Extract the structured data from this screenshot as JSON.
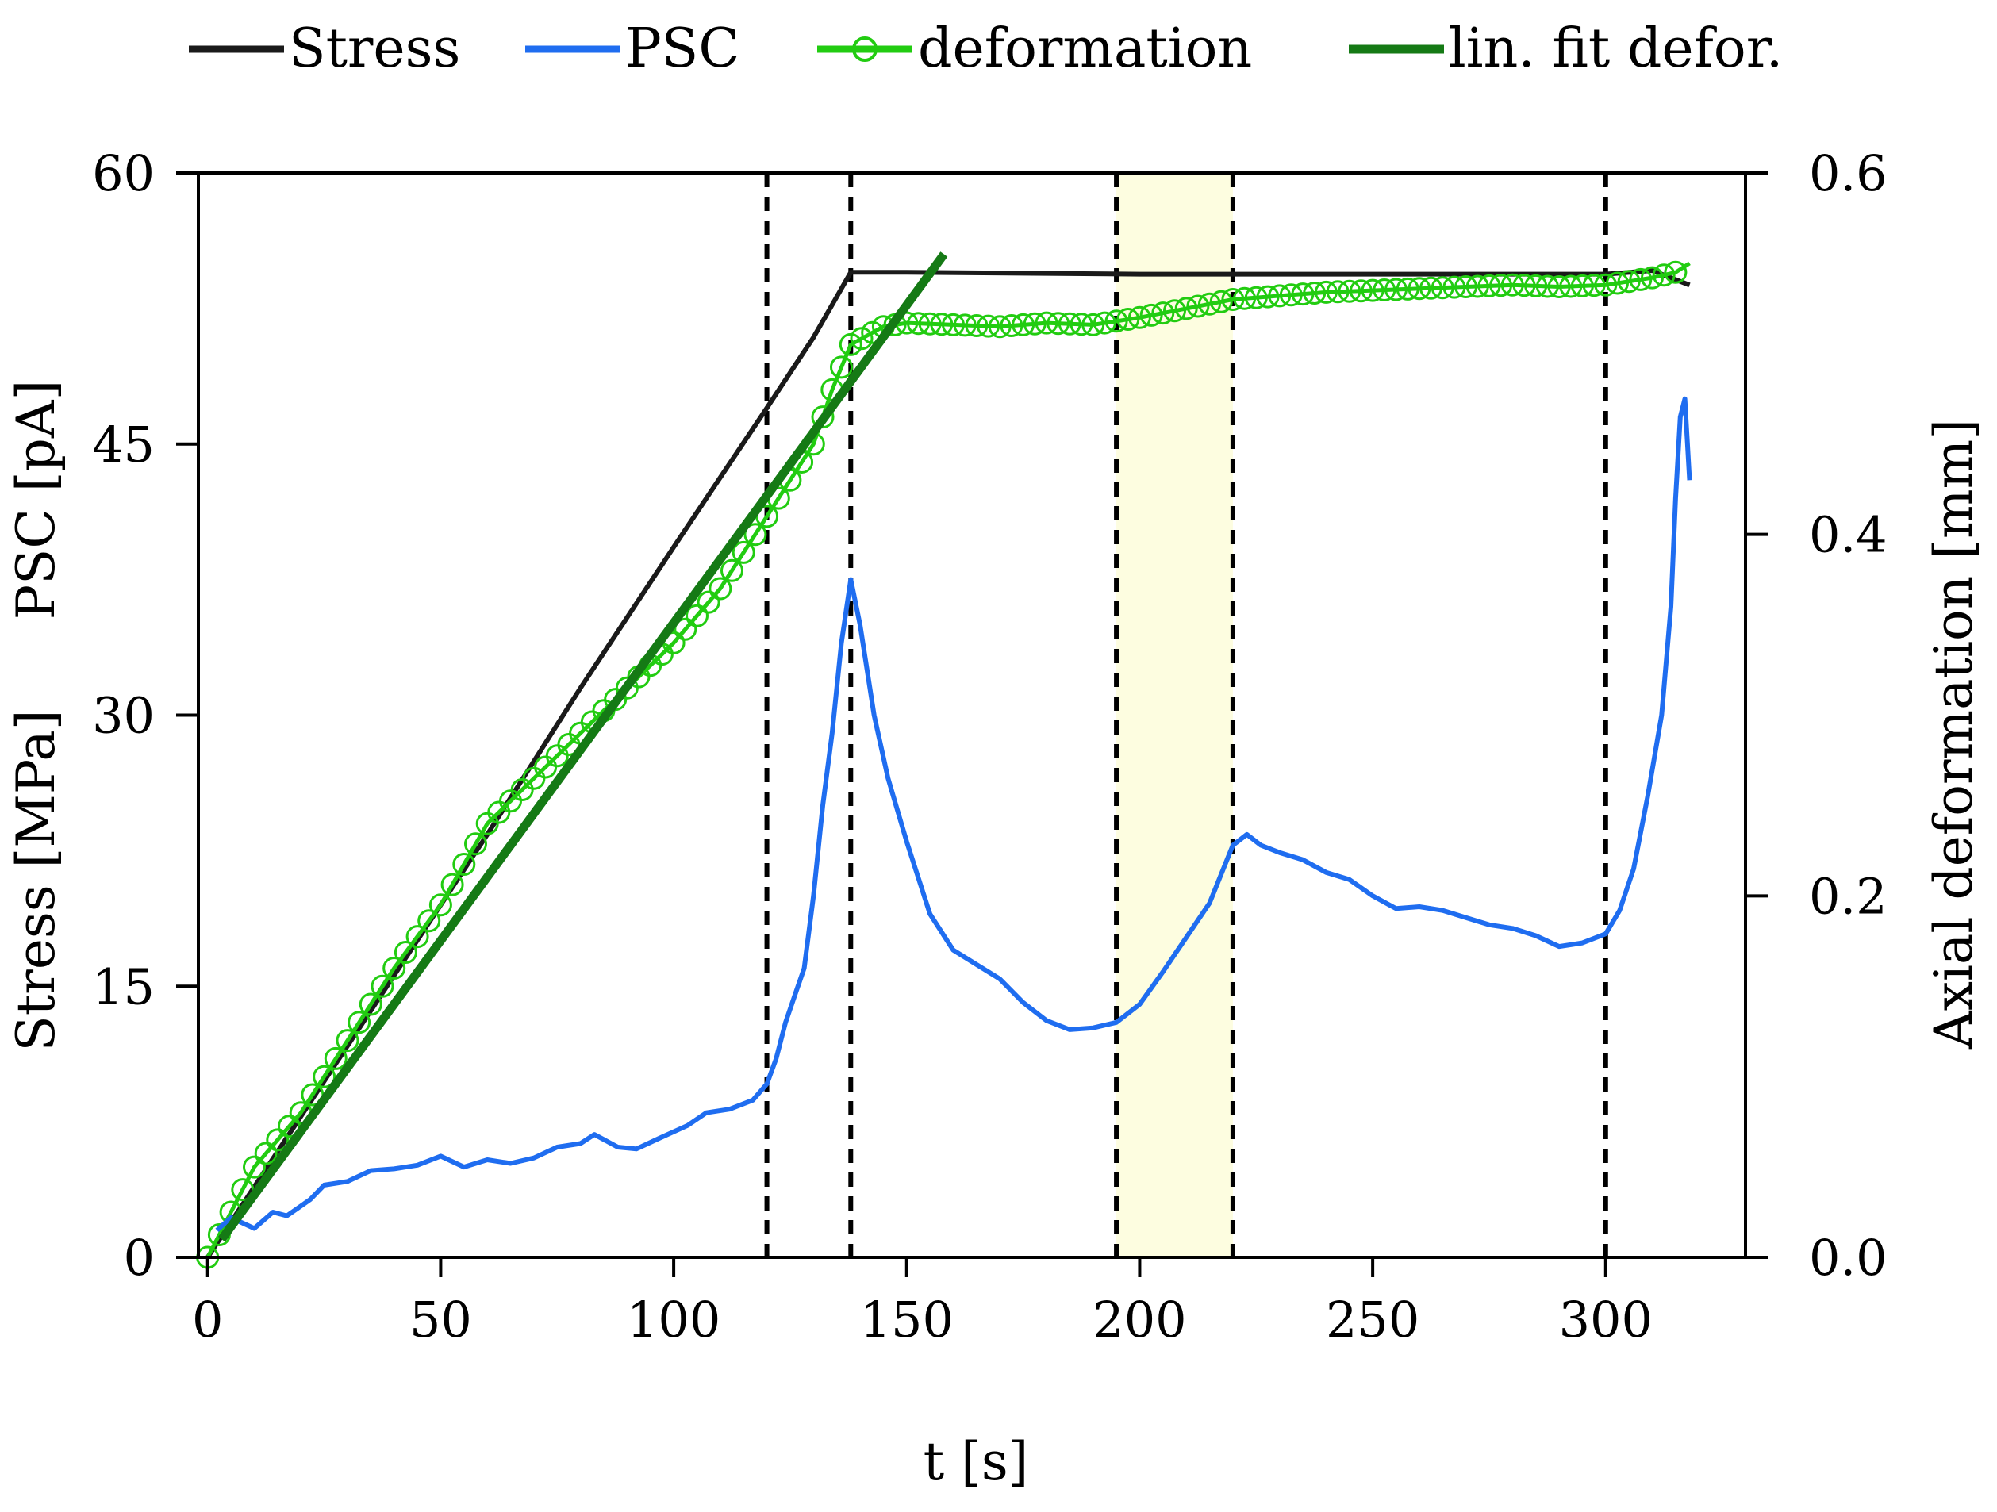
{
  "chart_data": {
    "type": "line",
    "x_label": "t [s]",
    "y_left_label_parts": [
      "Stress [MPa]",
      "PSC [pA]"
    ],
    "y_right_label": "Axial deformation [mm]",
    "x_range": [
      -2,
      330
    ],
    "y_left_range": [
      0,
      60
    ],
    "y_right_range": [
      0,
      0.6
    ],
    "x_ticks": [
      "0",
      "50",
      "100",
      "150",
      "200",
      "250",
      "300"
    ],
    "y_left_ticks": [
      "0",
      "15",
      "30",
      "45",
      "60"
    ],
    "y_right_ticks": [
      "0.0",
      "0.2",
      "0.4",
      "0.6"
    ],
    "legend": [
      {
        "label": "Stress",
        "color": "#1a1a1a",
        "marker": "none"
      },
      {
        "label": "PSC",
        "color": "#1f6df0",
        "marker": "none"
      },
      {
        "label": "deformation",
        "color": "#22cc11",
        "marker": "circle"
      },
      {
        "label": "lin. fit defor.",
        "color": "#157a15",
        "marker": "none"
      }
    ],
    "vertical_lines_x": [
      120,
      138,
      195,
      220,
      300
    ],
    "highlight_band_x": [
      195,
      220
    ],
    "highlight_color": "#fdfde0",
    "series": [
      {
        "name": "Stress",
        "axis": "left",
        "color": "#1a1a1a",
        "x": [
          0,
          20,
          40,
          60,
          80,
          100,
          120,
          130,
          138,
          150,
          200,
          250,
          300,
          310,
          318
        ],
        "y": [
          0,
          7.8,
          15.6,
          23.4,
          31.5,
          39.3,
          47.0,
          50.9,
          54.5,
          54.5,
          54.4,
          54.4,
          54.4,
          54.6,
          53.8
        ]
      },
      {
        "name": "PSC",
        "axis": "left",
        "color": "#1f6df0",
        "x": [
          2,
          5,
          10,
          14,
          17,
          22,
          25,
          30,
          35,
          40,
          45,
          50,
          55,
          60,
          65,
          70,
          75,
          80,
          83,
          88,
          92,
          97,
          103,
          107,
          112,
          117,
          120,
          122,
          124,
          126,
          128,
          130,
          132,
          134,
          136,
          138,
          140,
          143,
          146,
          150,
          155,
          160,
          165,
          170,
          175,
          180,
          185,
          190,
          195,
          200,
          205,
          210,
          215,
          220,
          223,
          226,
          230,
          235,
          240,
          245,
          250,
          255,
          260,
          265,
          270,
          275,
          280,
          285,
          290,
          295,
          300,
          303,
          306,
          309,
          312,
          314,
          315,
          316,
          317,
          318
        ],
        "y": [
          1.5,
          2.2,
          1.6,
          2.5,
          2.3,
          3.2,
          4.0,
          4.2,
          4.8,
          4.9,
          5.1,
          5.6,
          5.0,
          5.4,
          5.2,
          5.5,
          6.1,
          6.3,
          6.8,
          6.1,
          6.0,
          6.6,
          7.3,
          8.0,
          8.2,
          8.7,
          9.6,
          11.0,
          13.0,
          14.5,
          16.0,
          20.0,
          25.0,
          29.0,
          34.0,
          37.5,
          35.0,
          30.0,
          26.5,
          23.0,
          19.0,
          17.0,
          16.2,
          15.4,
          14.1,
          13.1,
          12.6,
          12.7,
          13.0,
          14.0,
          15.8,
          17.7,
          19.6,
          22.8,
          23.4,
          22.8,
          22.4,
          22.0,
          21.3,
          20.9,
          20.0,
          19.3,
          19.4,
          19.2,
          18.8,
          18.4,
          18.2,
          17.8,
          17.2,
          17.4,
          17.9,
          19.2,
          21.5,
          25.5,
          30.0,
          36.0,
          42.0,
          46.5,
          47.5,
          43.0
        ]
      },
      {
        "name": "deformation",
        "axis": "right",
        "color": "#22cc11",
        "marker": "circle",
        "x": [
          0,
          10,
          20,
          30,
          40,
          50,
          60,
          70,
          80,
          90,
          100,
          110,
          120,
          125,
          130,
          134,
          138,
          145,
          150,
          160,
          170,
          180,
          190,
          200,
          210,
          220,
          230,
          240,
          250,
          260,
          270,
          280,
          290,
          300,
          305,
          310,
          315,
          318
        ],
        "y": [
          0.0,
          0.05,
          0.08,
          0.12,
          0.16,
          0.195,
          0.24,
          0.265,
          0.29,
          0.315,
          0.34,
          0.37,
          0.41,
          0.43,
          0.45,
          0.48,
          0.505,
          0.515,
          0.517,
          0.516,
          0.515,
          0.517,
          0.516,
          0.52,
          0.525,
          0.53,
          0.532,
          0.534,
          0.535,
          0.536,
          0.537,
          0.538,
          0.537,
          0.538,
          0.54,
          0.542,
          0.545,
          0.55
        ]
      },
      {
        "name": "lin. fit defor.",
        "axis": "right",
        "color": "#157a15",
        "x": [
          3,
          158
        ],
        "y": [
          0.01,
          0.555
        ]
      }
    ]
  }
}
